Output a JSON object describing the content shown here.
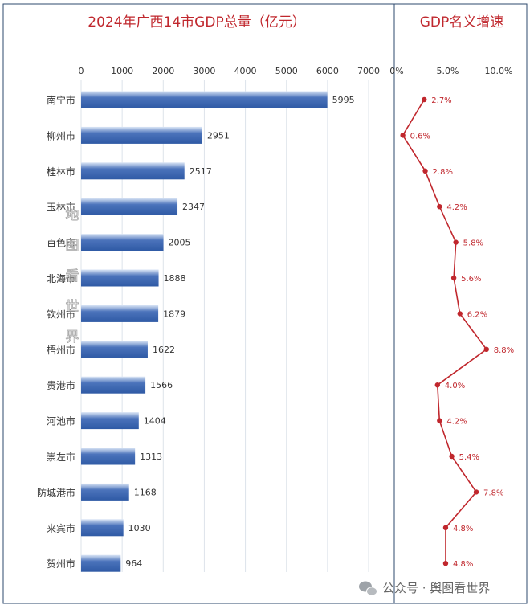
{
  "chart_data": [
    {
      "type": "bar",
      "orientation": "horizontal",
      "title": "2024年广西14市GDP总量（亿元）",
      "categories": [
        "南宁市",
        "柳州市",
        "桂林市",
        "玉林市",
        "百色市",
        "北海市",
        "钦州市",
        "梧州市",
        "贵港市",
        "河池市",
        "崇左市",
        "防城港市",
        "来宾市",
        "贺州市"
      ],
      "values": [
        5995,
        2951,
        2517,
        2347,
        2005,
        1888,
        1879,
        1622,
        1566,
        1404,
        1313,
        1168,
        1030,
        964
      ],
      "xlim": [
        0,
        7000
      ],
      "xticks": [
        "0",
        "1000",
        "2000",
        "3000",
        "4000",
        "5000",
        "6000",
        "7000"
      ],
      "grid": true,
      "colors": {
        "bar": "#4b73bb",
        "bar_light": "#dbe6f6",
        "title": "#c0272d"
      }
    },
    {
      "type": "line",
      "title": "GDP名义增速",
      "categories": [
        "南宁市",
        "柳州市",
        "桂林市",
        "玉林市",
        "百色市",
        "北海市",
        "钦州市",
        "梧州市",
        "贵港市",
        "河池市",
        "崇左市",
        "防城港市",
        "来宾市",
        "贺州市"
      ],
      "values": [
        2.7,
        0.6,
        2.8,
        4.2,
        5.8,
        5.6,
        6.2,
        8.8,
        4.0,
        4.2,
        5.4,
        7.8,
        4.8,
        4.8
      ],
      "labels": [
        "2.7%",
        "0.6%",
        "2.8%",
        "4.2%",
        "5.8%",
        "5.6%",
        "6.2%",
        "8.8%",
        "4.0%",
        "4.2%",
        "5.4%",
        "7.8%",
        "4.8%",
        "4.8%"
      ],
      "xlim": [
        0,
        10
      ],
      "xticks": [
        "0%",
        "5.0%",
        "10.0%"
      ],
      "colors": {
        "line": "#c0272d"
      }
    }
  ],
  "watermark": {
    "vertical": [
      "地",
      "图",
      "看",
      "世",
      "界"
    ],
    "footer": "公众号 · 舆图看世界"
  },
  "colors": {
    "panel_border": "#2e4a6e",
    "grid": "#dde3ea",
    "tick": "#333333"
  }
}
